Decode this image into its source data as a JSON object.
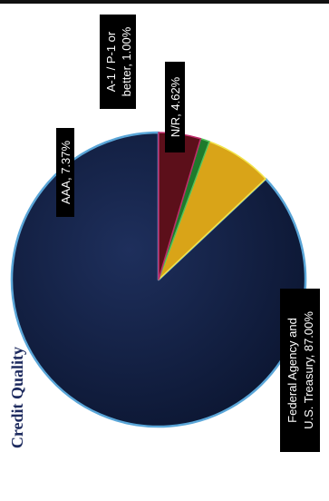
{
  "title": "Credit Quality",
  "colors": {
    "background": "#ffffff",
    "title": "#1d2a5e",
    "label_bg": "#000000",
    "label_text": "#ffffff"
  },
  "chart_data": {
    "type": "pie",
    "title": "Credit Quality",
    "slices": [
      {
        "label": "Federal Agency and U.S. Treasury",
        "percent_text": "87.00%",
        "value": 87.0,
        "color": "#101d3e",
        "edge": "#5aa6d8"
      },
      {
        "label": "AAA",
        "percent_text": "7.37%",
        "value": 7.37,
        "color": "#d9a418",
        "edge": "#f2e44a"
      },
      {
        "label": "A-1 / P-1 or better",
        "percent_text": "1.00%",
        "value": 1.0,
        "color": "#1e7a2c",
        "edge": "#55c25a"
      },
      {
        "label": "N/R",
        "percent_text": "4.62%",
        "value": 4.62,
        "color": "#5c0f1a",
        "edge": "#c02a6a"
      }
    ],
    "labels": [
      {
        "lines": [
          "AAA, 7.37%"
        ]
      },
      {
        "lines": [
          "A-1 / P-1 or",
          "better, 1.00%"
        ]
      },
      {
        "lines": [
          "N/R, 4.62%"
        ]
      },
      {
        "lines": [
          "Federal Agency and",
          "U.S. Treasury, 87.00%"
        ]
      }
    ],
    "legend": "none",
    "grid": false
  }
}
